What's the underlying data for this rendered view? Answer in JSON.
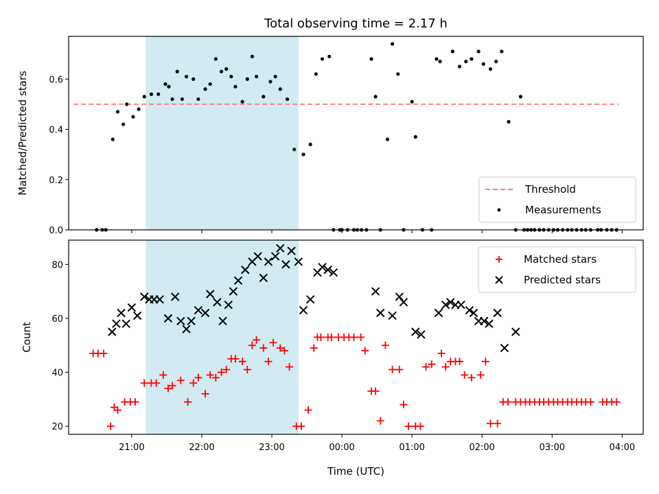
{
  "chart_data": [
    {
      "type": "scatter",
      "title": "Total observing time = 2.17 h",
      "xlabel": "",
      "ylabel": "Matched/Predicted stars",
      "x_unit": "hours since 00:00 UTC (negative = before midnight)",
      "xlim": [
        -3.9,
        4.3
      ],
      "ylim": [
        0.0,
        0.77
      ],
      "yticks": [
        0.0,
        0.2,
        0.4,
        0.6
      ],
      "ytick_labels": [
        "0.0",
        "0.2",
        "0.4",
        "0.6"
      ],
      "shaded_span": [
        -2.8,
        -0.62
      ],
      "shaded_color": "#add8e6",
      "legend_position": "lower right",
      "threshold": {
        "name": "Threshold",
        "value": 0.5,
        "x_range": [
          -3.83,
          3.95
        ],
        "color": "#ff7777"
      },
      "series": [
        {
          "name": "Measurements",
          "color": "#000000",
          "marker": "dot",
          "x": [
            -3.5,
            -3.42,
            -3.37,
            -3.27,
            -3.2,
            -3.12,
            -3.07,
            -2.98,
            -2.9,
            -2.82,
            -2.72,
            -2.62,
            -2.52,
            -2.47,
            -2.42,
            -2.35,
            -2.28,
            -2.22,
            -2.12,
            -2.05,
            -1.95,
            -1.88,
            -1.8,
            -1.72,
            -1.65,
            -1.58,
            -1.52,
            -1.42,
            -1.35,
            -1.28,
            -1.22,
            -1.12,
            -1.02,
            -0.95,
            -0.88,
            -0.78,
            -0.68,
            -0.55,
            -0.45,
            -0.37,
            -0.28,
            -0.18,
            -0.12,
            -0.03,
            0.0,
            0.08,
            0.17,
            0.22,
            0.28,
            0.35,
            0.42,
            0.48,
            0.55,
            0.65,
            0.72,
            0.8,
            0.88,
            1.0,
            1.05,
            1.15,
            1.28,
            1.35,
            1.4,
            1.58,
            1.68,
            1.77,
            1.85,
            1.95,
            2.02,
            2.12,
            2.2,
            2.28,
            2.38,
            2.48,
            2.55,
            2.6,
            2.65,
            2.7,
            2.75,
            2.82,
            2.88,
            2.95,
            3.02,
            3.08,
            3.15,
            3.22,
            3.28,
            3.35,
            3.42,
            3.48,
            3.55,
            3.65,
            3.7,
            3.78,
            3.85,
            3.92
          ],
          "y": [
            0.0,
            0.0,
            0.0,
            0.36,
            0.47,
            0.42,
            0.5,
            0.45,
            0.48,
            0.53,
            0.54,
            0.54,
            0.58,
            0.57,
            0.52,
            0.63,
            0.52,
            0.61,
            0.6,
            0.52,
            0.56,
            0.58,
            0.68,
            0.63,
            0.64,
            0.61,
            0.57,
            0.51,
            0.6,
            0.69,
            0.61,
            0.53,
            0.59,
            0.61,
            0.56,
            0.52,
            0.32,
            0.3,
            0.34,
            0.62,
            0.68,
            0.69,
            0.0,
            0.0,
            0.0,
            0.0,
            0.0,
            0.0,
            0.0,
            0.0,
            0.68,
            0.53,
            0.0,
            0.36,
            0.74,
            0.62,
            0.0,
            0.51,
            0.37,
            0.0,
            0.0,
            0.68,
            0.67,
            0.71,
            0.65,
            0.67,
            0.68,
            0.71,
            0.66,
            0.64,
            0.67,
            0.71,
            0.43,
            0.0,
            0.53,
            0.0,
            0.0,
            0.0,
            0.0,
            0.0,
            0.0,
            0.0,
            0.0,
            0.0,
            0.0,
            0.0,
            0.0,
            0.0,
            0.0,
            0.0,
            0.0,
            0.0,
            0.0,
            0.0,
            0.0,
            0.0
          ]
        }
      ]
    },
    {
      "type": "scatter",
      "title": "",
      "xlabel": "Time (UTC)",
      "ylabel": "Count",
      "x_unit": "hours since 00:00 UTC (negative = before midnight)",
      "xlim": [
        -3.9,
        4.3
      ],
      "ylim": [
        17,
        89
      ],
      "yticks": [
        20,
        40,
        60,
        80
      ],
      "ytick_labels": [
        "20",
        "40",
        "60",
        "80"
      ],
      "xticks": [
        -3,
        -2,
        -1,
        0,
        1,
        2,
        3,
        4
      ],
      "xtick_labels": [
        "21:00",
        "22:00",
        "23:00",
        "00:00",
        "01:00",
        "02:00",
        "03:00",
        "04:00"
      ],
      "shaded_span": [
        -2.8,
        -0.62
      ],
      "shaded_color": "#add8e6",
      "legend_position": "upper right",
      "series": [
        {
          "name": "Matched stars",
          "color": "#ff0000",
          "marker": "plus",
          "x": [
            -3.55,
            -3.48,
            -3.4,
            -3.3,
            -3.25,
            -3.2,
            -3.1,
            -3.02,
            -2.95,
            -2.82,
            -2.72,
            -2.65,
            -2.55,
            -2.48,
            -2.42,
            -2.3,
            -2.2,
            -2.12,
            -2.05,
            -1.95,
            -1.88,
            -1.8,
            -1.72,
            -1.65,
            -1.58,
            -1.52,
            -1.42,
            -1.35,
            -1.28,
            -1.22,
            -1.12,
            -1.05,
            -0.98,
            -0.88,
            -0.82,
            -0.75,
            -0.65,
            -0.58,
            -0.48,
            -0.4,
            -0.35,
            -0.3,
            -0.2,
            -0.15,
            -0.05,
            0.03,
            0.1,
            0.17,
            0.27,
            0.33,
            0.42,
            0.48,
            0.55,
            0.62,
            0.72,
            0.82,
            0.88,
            0.95,
            1.05,
            1.12,
            1.2,
            1.28,
            1.42,
            1.48,
            1.55,
            1.62,
            1.68,
            1.75,
            1.85,
            1.98,
            2.05,
            2.12,
            2.22,
            2.3,
            2.37,
            2.48,
            2.55,
            2.62,
            2.68,
            2.75,
            2.82,
            2.88,
            2.95,
            3.02,
            3.08,
            3.15,
            3.22,
            3.28,
            3.35,
            3.42,
            3.48,
            3.55,
            3.72,
            3.78,
            3.85,
            3.92
          ],
          "y": [
            47,
            47,
            47,
            20,
            27,
            26,
            29,
            29,
            29,
            36,
            36,
            36,
            39,
            34,
            35,
            37,
            29,
            36,
            38,
            32,
            39,
            38,
            40,
            41,
            45,
            45,
            44,
            41,
            50,
            52,
            49,
            44,
            51,
            49,
            48,
            42,
            20,
            20,
            26,
            49,
            53,
            53,
            53,
            53,
            53,
            53,
            53,
            53,
            53,
            48,
            33,
            33,
            22,
            50,
            41,
            41,
            28,
            20,
            20,
            20,
            42,
            43,
            47,
            42,
            44,
            44,
            44,
            39,
            38,
            39,
            44,
            21,
            21,
            29,
            29,
            29,
            29,
            29,
            29,
            29,
            29,
            29,
            29,
            29,
            29,
            29,
            29,
            29,
            29,
            29,
            29,
            29,
            29,
            29,
            29,
            29
          ]
        },
        {
          "name": "Predicted stars",
          "color": "#000000",
          "marker": "x",
          "x": [
            -3.28,
            -3.22,
            -3.15,
            -3.08,
            -3.0,
            -2.92,
            -2.82,
            -2.75,
            -2.68,
            -2.6,
            -2.48,
            -2.38,
            -2.3,
            -2.22,
            -2.15,
            -2.05,
            -1.95,
            -1.88,
            -1.78,
            -1.7,
            -1.62,
            -1.55,
            -1.48,
            -1.38,
            -1.28,
            -1.2,
            -1.12,
            -1.05,
            -0.95,
            -0.88,
            -0.8,
            -0.72,
            -0.62,
            -0.55,
            -0.45,
            -0.35,
            -0.28,
            -0.2,
            -0.12,
            0.48,
            0.55,
            0.72,
            0.82,
            0.88,
            1.05,
            1.13,
            1.38,
            1.48,
            1.55,
            1.62,
            1.7,
            1.82,
            1.88,
            1.95,
            2.03,
            2.1,
            2.22,
            2.32,
            2.48
          ],
          "y": [
            55,
            58,
            62,
            58,
            64,
            61,
            68,
            67,
            67,
            67,
            60,
            68,
            59,
            56,
            59,
            63,
            62,
            69,
            66,
            59,
            65,
            70,
            74,
            78,
            81,
            83,
            75,
            81,
            83,
            86,
            80,
            85,
            81,
            63,
            67,
            77,
            79,
            78,
            77,
            70,
            62,
            61,
            68,
            66,
            55,
            54,
            62,
            65,
            66,
            65,
            65,
            63,
            62,
            59,
            59,
            58,
            62,
            49,
            55
          ]
        }
      ]
    }
  ]
}
